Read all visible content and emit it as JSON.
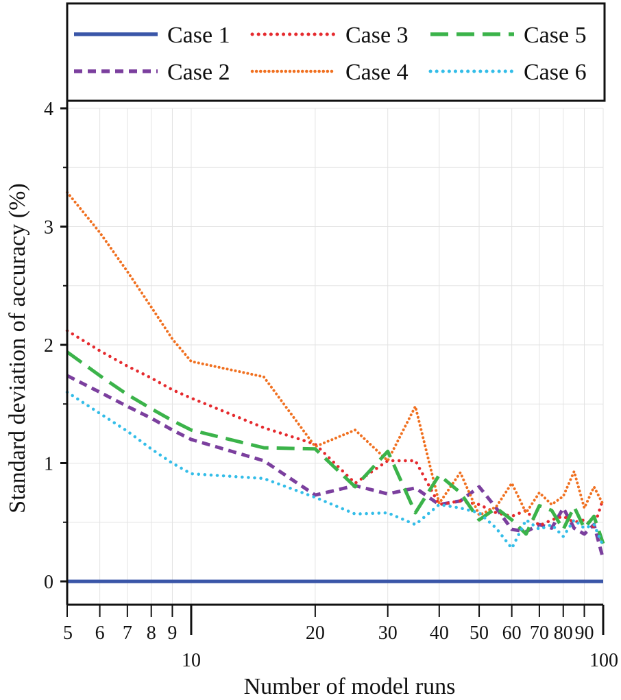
{
  "chart_data": {
    "type": "line",
    "xlabel": "Number of model runs",
    "ylabel": "Standard deviation of accuracy (%)",
    "x_scale": "log",
    "xlim": [
      5,
      100
    ],
    "ylim": [
      0,
      4
    ],
    "grid": true,
    "legend_position": "top",
    "x_ticks": [
      5,
      6,
      7,
      8,
      9,
      10,
      20,
      30,
      40,
      50,
      60,
      70,
      80,
      90,
      100
    ],
    "x_tick_labels": [
      "5",
      "6",
      "7",
      "8",
      "9",
      "10",
      "20",
      "30",
      "40",
      "50",
      "60",
      "70",
      "80",
      "90",
      "100"
    ],
    "y_ticks": [
      0,
      1,
      2,
      3,
      4
    ],
    "y_tick_labels": [
      "0",
      "1",
      "2",
      "3",
      "4"
    ],
    "series": [
      {
        "name": "Case 1",
        "color": "#3a56a8",
        "style": "solid",
        "points": [
          [
            5,
            0
          ],
          [
            100,
            0
          ]
        ]
      },
      {
        "name": "Case 2",
        "color": "#7b3f9e",
        "style": "dash",
        "points": [
          [
            5,
            1.74
          ],
          [
            6,
            1.6
          ],
          [
            7,
            1.48
          ],
          [
            8,
            1.38
          ],
          [
            9,
            1.28
          ],
          [
            10,
            1.2
          ],
          [
            15,
            1.02
          ],
          [
            20,
            0.73
          ],
          [
            25,
            0.81
          ],
          [
            30,
            0.74
          ],
          [
            35,
            0.79
          ],
          [
            40,
            0.65
          ],
          [
            45,
            0.68
          ],
          [
            50,
            0.8
          ],
          [
            55,
            0.62
          ],
          [
            60,
            0.44
          ],
          [
            65,
            0.42
          ],
          [
            70,
            0.48
          ],
          [
            75,
            0.45
          ],
          [
            80,
            0.62
          ],
          [
            85,
            0.45
          ],
          [
            90,
            0.4
          ],
          [
            95,
            0.48
          ],
          [
            100,
            0.19
          ]
        ]
      },
      {
        "name": "Case 3",
        "color": "#e52a2e",
        "style": "dot",
        "points": [
          [
            5,
            2.12
          ],
          [
            6,
            1.95
          ],
          [
            7,
            1.82
          ],
          [
            8,
            1.72
          ],
          [
            9,
            1.62
          ],
          [
            10,
            1.55
          ],
          [
            15,
            1.3
          ],
          [
            20,
            1.16
          ],
          [
            25,
            0.83
          ],
          [
            30,
            1.02
          ],
          [
            35,
            1.02
          ],
          [
            40,
            0.65
          ],
          [
            45,
            0.68
          ],
          [
            50,
            0.65
          ],
          [
            55,
            0.58
          ],
          [
            60,
            0.55
          ],
          [
            65,
            0.6
          ],
          [
            70,
            0.47
          ],
          [
            75,
            0.52
          ],
          [
            80,
            0.55
          ],
          [
            85,
            0.5
          ],
          [
            90,
            0.52
          ],
          [
            95,
            0.46
          ],
          [
            100,
            0.7
          ]
        ]
      },
      {
        "name": "Case 4",
        "color": "#f07020",
        "style": "dense-dot",
        "points": [
          [
            5,
            3.29
          ],
          [
            6,
            2.95
          ],
          [
            7,
            2.62
          ],
          [
            8,
            2.32
          ],
          [
            9,
            2.05
          ],
          [
            10,
            1.86
          ],
          [
            15,
            1.73
          ],
          [
            20,
            1.14
          ],
          [
            25,
            1.28
          ],
          [
            30,
            1.02
          ],
          [
            35,
            1.48
          ],
          [
            40,
            0.66
          ],
          [
            45,
            0.92
          ],
          [
            50,
            0.56
          ],
          [
            55,
            0.63
          ],
          [
            60,
            0.83
          ],
          [
            65,
            0.58
          ],
          [
            70,
            0.75
          ],
          [
            75,
            0.65
          ],
          [
            80,
            0.72
          ],
          [
            85,
            0.93
          ],
          [
            90,
            0.62
          ],
          [
            95,
            0.8
          ],
          [
            100,
            0.65
          ]
        ]
      },
      {
        "name": "Case 5",
        "color": "#3bb34a",
        "style": "long-dash",
        "points": [
          [
            5,
            1.94
          ],
          [
            6,
            1.74
          ],
          [
            7,
            1.58
          ],
          [
            8,
            1.46
          ],
          [
            9,
            1.36
          ],
          [
            10,
            1.28
          ],
          [
            15,
            1.13
          ],
          [
            20,
            1.12
          ],
          [
            25,
            0.8
          ],
          [
            30,
            1.1
          ],
          [
            35,
            0.58
          ],
          [
            40,
            0.9
          ],
          [
            45,
            0.75
          ],
          [
            50,
            0.52
          ],
          [
            55,
            0.62
          ],
          [
            60,
            0.52
          ],
          [
            65,
            0.4
          ],
          [
            70,
            0.64
          ],
          [
            75,
            0.6
          ],
          [
            80,
            0.44
          ],
          [
            85,
            0.63
          ],
          [
            90,
            0.45
          ],
          [
            95,
            0.55
          ],
          [
            100,
            0.32
          ]
        ]
      },
      {
        "name": "Case 6",
        "color": "#33bde8",
        "style": "dot",
        "points": [
          [
            5,
            1.6
          ],
          [
            6,
            1.42
          ],
          [
            7,
            1.27
          ],
          [
            8,
            1.12
          ],
          [
            9,
            1.0
          ],
          [
            10,
            0.91
          ],
          [
            15,
            0.87
          ],
          [
            20,
            0.71
          ],
          [
            25,
            0.57
          ],
          [
            30,
            0.58
          ],
          [
            35,
            0.48
          ],
          [
            40,
            0.65
          ],
          [
            45,
            0.62
          ],
          [
            50,
            0.58
          ],
          [
            55,
            0.45
          ],
          [
            60,
            0.28
          ],
          [
            65,
            0.52
          ],
          [
            70,
            0.44
          ],
          [
            75,
            0.48
          ],
          [
            80,
            0.38
          ],
          [
            85,
            0.52
          ],
          [
            90,
            0.45
          ],
          [
            95,
            0.48
          ],
          [
            100,
            0.3
          ]
        ]
      }
    ]
  }
}
